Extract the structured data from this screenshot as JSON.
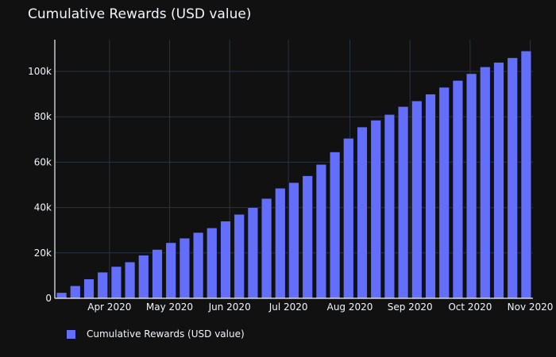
{
  "chart_data": {
    "type": "bar",
    "title": "Cumulative Rewards (USD value)",
    "xlabel": "",
    "ylabel": "",
    "ylim": [
      0,
      114000
    ],
    "y_ticks": [
      0,
      20000,
      40000,
      60000,
      80000,
      100000
    ],
    "y_tick_labels": [
      "0",
      "20k",
      "40k",
      "60k",
      "80k",
      "100k"
    ],
    "x_tick_labels": [
      "Apr 2020",
      "May 2020",
      "Jun 2020",
      "Jul 2020",
      "Aug 2020",
      "Sep 2020",
      "Oct 2020",
      "Nov 2020"
    ],
    "x_tick_positions": [
      3.5,
      7.9,
      12.3,
      16.6,
      21.1,
      25.5,
      29.9,
      34.3
    ],
    "values": [
      2500,
      5500,
      8500,
      11500,
      14000,
      16000,
      19000,
      21500,
      24500,
      26500,
      29000,
      31000,
      34000,
      37000,
      40000,
      44000,
      48500,
      51000,
      54000,
      59000,
      64500,
      70500,
      75500,
      78500,
      81000,
      84500,
      87000,
      90000,
      93000,
      96000,
      99000,
      102000,
      104000,
      106000,
      109000
    ],
    "colors": {
      "bar": "#636efa",
      "background": "#111111",
      "grid": "#283442",
      "text": "#f2f5fa"
    },
    "legend": {
      "position": "bottom-left",
      "entries": [
        "Cumulative Rewards (USD value)"
      ]
    }
  }
}
